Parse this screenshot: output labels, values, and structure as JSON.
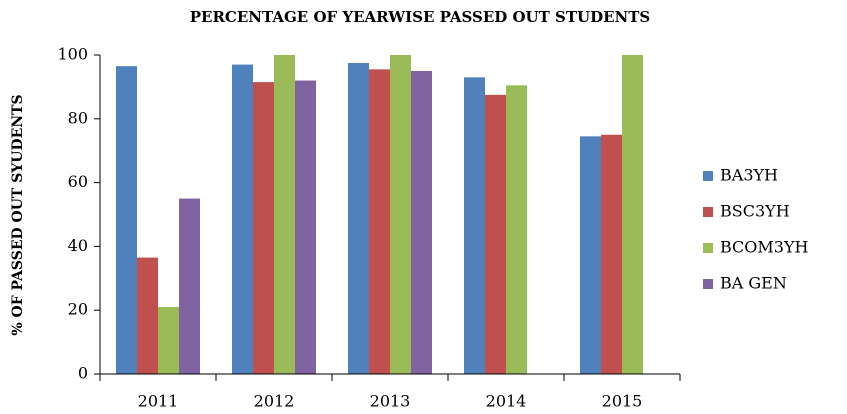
{
  "chart_data": {
    "type": "bar",
    "title": "PERCENTAGE  OF YEARWISE PASSED OUT STUDENTS",
    "y_label": "% OF PASSED OUT SYUDENTS",
    "categories": [
      "2011",
      "2012",
      "2013",
      "2014",
      "2015"
    ],
    "series": [
      {
        "name": "BA3YH",
        "color": "#4f81bd",
        "values": [
          96.5,
          97,
          97.5,
          93,
          74.5
        ]
      },
      {
        "name": "BSC3YH",
        "color": "#c0504d",
        "values": [
          36.5,
          91.5,
          95.5,
          87.5,
          75
        ]
      },
      {
        "name": "BCOM3YH",
        "color": "#9bbb59",
        "values": [
          21,
          100,
          100,
          90.5,
          100
        ]
      },
      {
        "name": "BA GEN",
        "color": "#8064a2",
        "values": [
          55,
          92,
          95,
          null,
          null
        ]
      }
    ],
    "ylim": [
      0,
      100
    ],
    "yticks": [
      0,
      20,
      40,
      60,
      80,
      100
    ],
    "legend": "right"
  }
}
